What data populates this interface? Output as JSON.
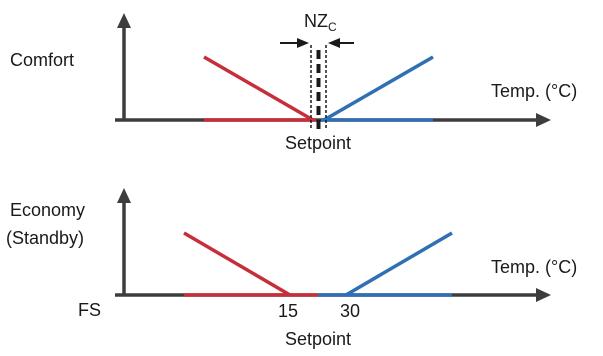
{
  "colors": {
    "heating": "#c62f3a",
    "cooling": "#2f6fb4",
    "axis": "#3d3d3d"
  },
  "top_panel": {
    "mode_label": "Comfort",
    "x_axis_label": "Temp. (°C)",
    "setpoint_label": "Setpoint",
    "neutral_zone_label": "NZ",
    "neutral_zone_subscript": "C"
  },
  "bottom_panel": {
    "mode_label_line1": "Economy",
    "mode_label_line2": "(Standby)",
    "x_axis_label": "Temp. (°C)",
    "fs_label": "FS",
    "tick_heating": "15",
    "tick_cooling": "30",
    "setpoint_label": "Setpoint"
  }
}
